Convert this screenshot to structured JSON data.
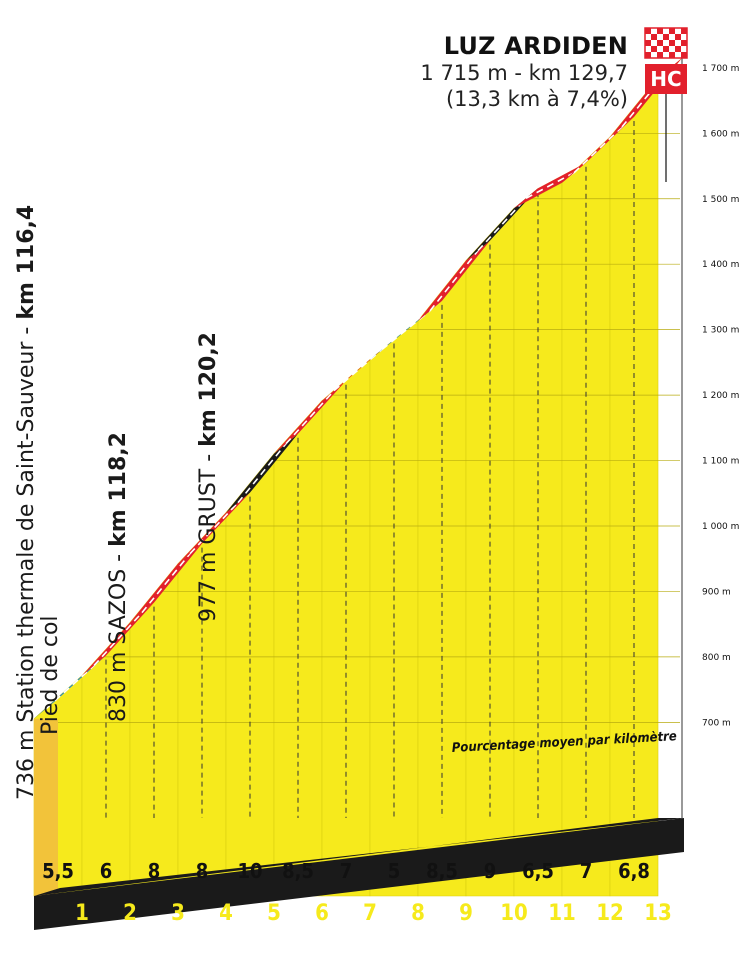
{
  "summit": {
    "name": "LUZ ARDIDEN",
    "line1": "1 715 m - km 129,7",
    "line2": "(13,3 km à 7,4%)",
    "category": "HC"
  },
  "waypoints": [
    {
      "prefix": "736 m Station thermale de Saint-Sauveur - ",
      "km": "km 116,4",
      "line2": "Pied de col"
    },
    {
      "prefix": "830 m SAZOS - ",
      "km": "km 118,2",
      "line2": ""
    },
    {
      "prefix": "977 m GRUST - ",
      "km": "km 120,2",
      "line2": ""
    }
  ],
  "legend_text": "Pourcentage moyen par kilomètre",
  "chart_data": {
    "type": "area",
    "title": "LUZ ARDIDEN",
    "xlabel": "",
    "ylabel": "",
    "ylim": [
      650,
      1750
    ],
    "y_ticks": [
      "700 m",
      "800 m",
      "900 m",
      "1 000 m",
      "1 100 m",
      "1 200 m",
      "1 300 m",
      "1 400 m",
      "1 500 m",
      "1 600 m",
      "1 700 m"
    ],
    "km_labels": [
      "1",
      "2",
      "3",
      "4",
      "5",
      "6",
      "7",
      "8",
      "9",
      "10",
      "11",
      "12",
      "13"
    ],
    "segments": [
      {
        "grade": "5,5",
        "color": "#2e8bc0"
      },
      {
        "grade": "6",
        "color": "#e2202c"
      },
      {
        "grade": "8",
        "color": "#e2202c"
      },
      {
        "grade": "8",
        "color": "#e2202c"
      },
      {
        "grade": "10",
        "color": "#1a1a1a"
      },
      {
        "grade": "8,5",
        "color": "#e2202c"
      },
      {
        "grade": "7",
        "color": "#e2202c"
      },
      {
        "grade": "5",
        "color": "#2e8bc0"
      },
      {
        "grade": "8,5",
        "color": "#e2202c"
      },
      {
        "grade": "9",
        "color": "#1a1a1a"
      },
      {
        "grade": "6,5",
        "color": "#e2202c"
      },
      {
        "grade": "7",
        "color": "#e2202c"
      },
      {
        "grade": "6,8",
        "color": "#e2202c"
      },
      {
        "grade": "6,8",
        "color": "#e2202c"
      }
    ],
    "altitudes": [
      736,
      802,
      883,
      973,
      1051,
      1141,
      1222,
      1285,
      1344,
      1436,
      1516,
      1555,
      1625,
      1715
    ]
  },
  "colors": {
    "yellow": "#f6ea1c",
    "yellow_shadow": "#f2c33a",
    "base_dark": "#1a1a1a",
    "red": "#e2202c",
    "black": "#1a1a1a",
    "blue": "#2e8bc0"
  }
}
